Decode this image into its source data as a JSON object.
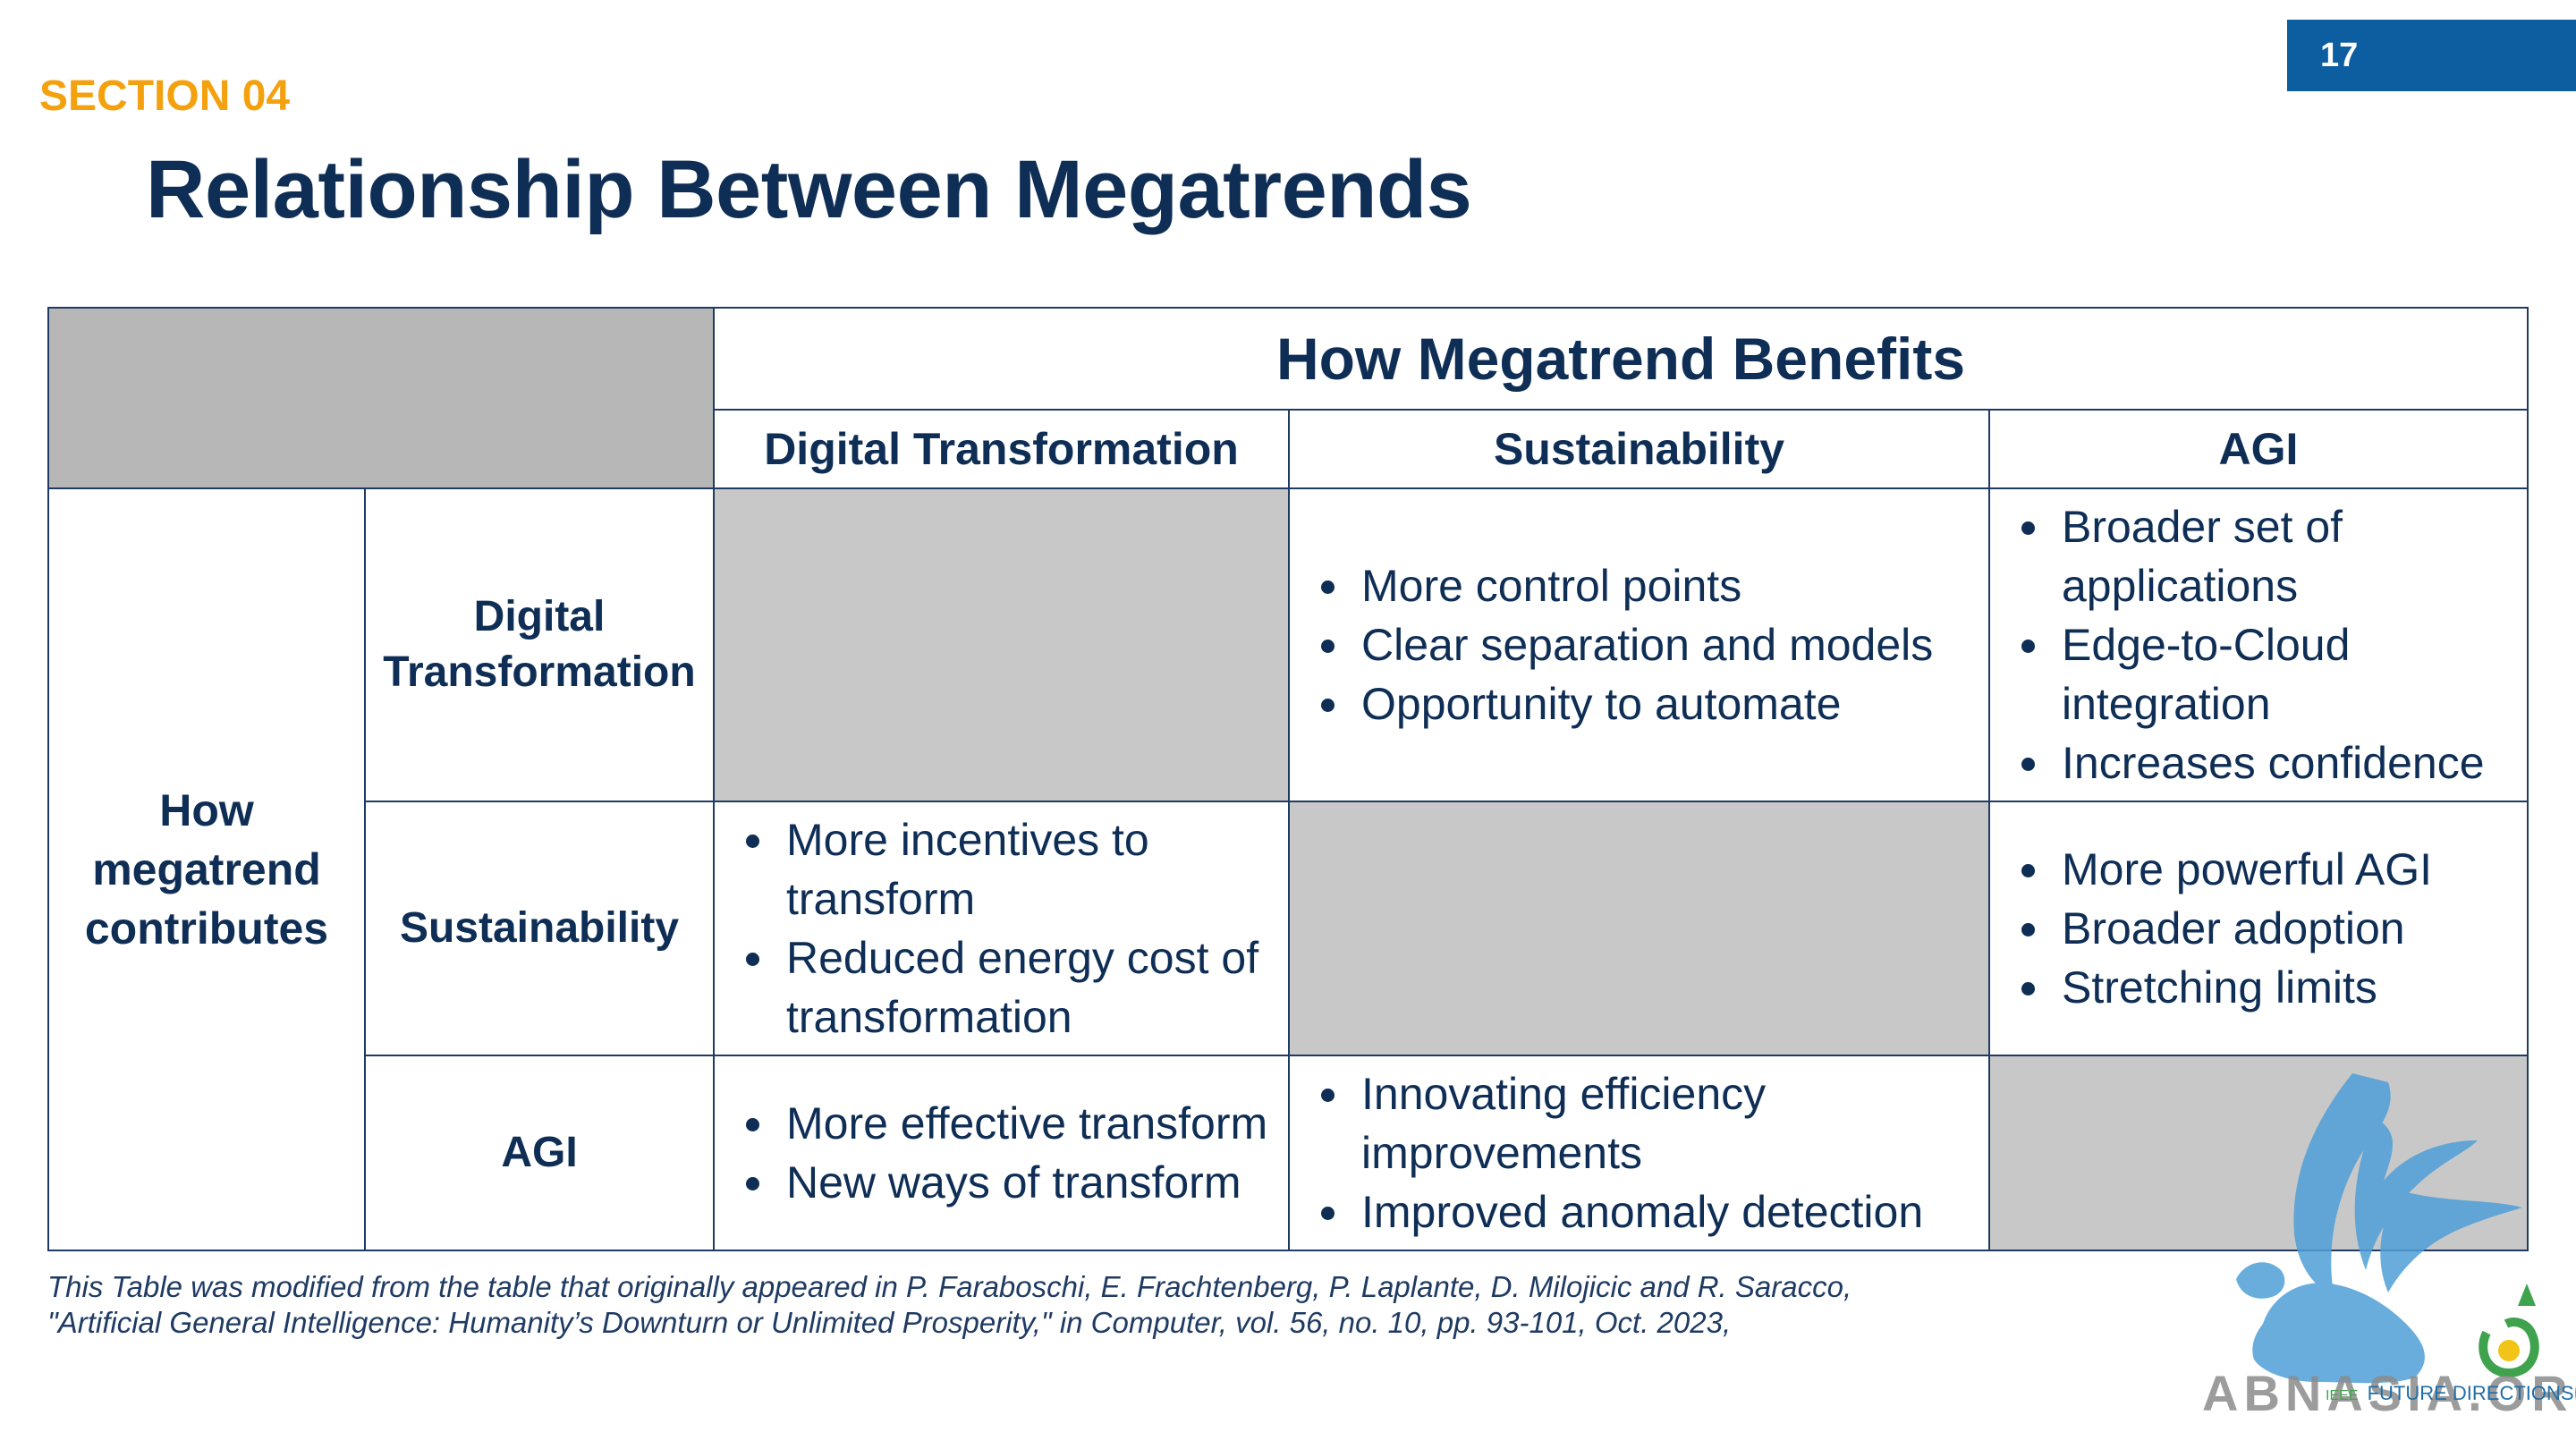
{
  "page_number": "17",
  "section_label": "SECTION 04",
  "title": "Relationship Between Megatrends",
  "table": {
    "benefits_header": "How Megatrend Benefits",
    "contributes_header": "How megatrend contributes",
    "columns": [
      "Digital Transformation",
      "Sustainability",
      "AGI"
    ],
    "rows": [
      {
        "label": "Digital Transformation",
        "cells": [
          [],
          [
            "More control points",
            "Clear separation and models",
            "Opportunity to automate"
          ],
          [
            "Broader set of applications",
            "Edge-to-Cloud integration",
            "Increases confidence"
          ]
        ]
      },
      {
        "label": "Sustainability",
        "cells": [
          [
            "More incentives to transform",
            "Reduced energy cost of transformation"
          ],
          [],
          [
            "More powerful AGI",
            "Broader adoption",
            "Stretching limits"
          ]
        ]
      },
      {
        "label": "AGI",
        "cells": [
          [
            "More effective transform",
            "New ways of transform"
          ],
          [
            "Innovating efficiency improvements",
            "Improved anomaly detection"
          ],
          []
        ]
      }
    ]
  },
  "footnote": {
    "line1": "This Table was modified from the table that originally appeared in P. Faraboschi, E. Frachtenberg, P. Laplante, D. Milojicic and R. Saracco,",
    "line2": "\"Artificial General Intelligence: Humanity’s Downturn or Unlimited Prosperity,\" in Computer, vol. 56, no. 10, pp. 93-101, Oct. 2023,"
  },
  "logo": {
    "text": "ABNASIA.ORG",
    "sub": "FUTURE DIRECTIONS",
    "tag": "IEEE"
  },
  "colors": {
    "accent_blue": "#0c5ea0",
    "title_navy": "#0f2e56",
    "section_orange": "#f4a10f",
    "shaded_cell": "#c8c8c8"
  }
}
